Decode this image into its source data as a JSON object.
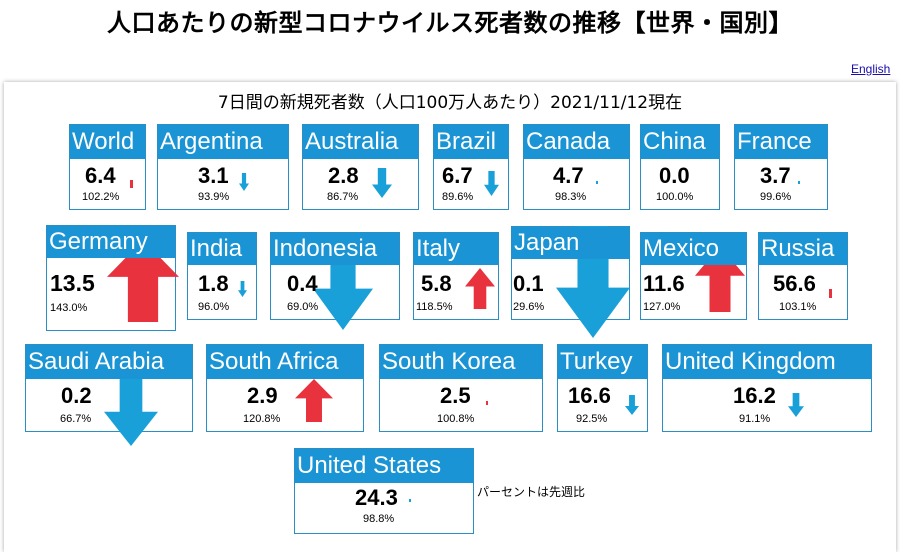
{
  "page": {
    "title": "人口あたりの新型コロナウイルス死者数の推移【世界・国別】",
    "english_link": "English",
    "footnote": "パーセントは先週比"
  },
  "colors": {
    "header": "#1a94d4",
    "up": "#e8323e",
    "down": "#1aa0d8",
    "border": "#2a8fc4"
  },
  "chart_data": {
    "type": "table",
    "title": "7日間の新規死者数（人口100万人あたり）2021/11/12現在",
    "columns": [
      "country",
      "deaths_per_million_7day",
      "week_over_week"
    ],
    "rows": [
      {
        "name": "World",
        "value": "6.4",
        "pct": "102.2%",
        "ratio": 1.022
      },
      {
        "name": "Argentina",
        "value": "3.1",
        "pct": "93.9%",
        "ratio": 0.939
      },
      {
        "name": "Australia",
        "value": "2.8",
        "pct": "86.7%",
        "ratio": 0.867
      },
      {
        "name": "Brazil",
        "value": "6.7",
        "pct": "89.6%",
        "ratio": 0.896
      },
      {
        "name": "Canada",
        "value": "4.7",
        "pct": "98.3%",
        "ratio": 0.983
      },
      {
        "name": "China",
        "value": "0.0",
        "pct": "100.0%",
        "ratio": 1.0
      },
      {
        "name": "France",
        "value": "3.7",
        "pct": "99.6%",
        "ratio": 0.996
      },
      {
        "name": "Germany",
        "value": "13.5",
        "pct": "143.0%",
        "ratio": 1.43
      },
      {
        "name": "India",
        "value": "1.8",
        "pct": "96.0%",
        "ratio": 0.96
      },
      {
        "name": "Indonesia",
        "value": "0.4",
        "pct": "69.0%",
        "ratio": 0.69
      },
      {
        "name": "Italy",
        "value": "5.8",
        "pct": "118.5%",
        "ratio": 1.185
      },
      {
        "name": "Japan",
        "value": "0.1",
        "pct": "29.6%",
        "ratio": 0.296
      },
      {
        "name": "Mexico",
        "value": "11.6",
        "pct": "127.0%",
        "ratio": 1.27
      },
      {
        "name": "Russia",
        "value": "56.6",
        "pct": "103.1%",
        "ratio": 1.031
      },
      {
        "name": "Saudi Arabia",
        "value": "0.2",
        "pct": "66.7%",
        "ratio": 0.667
      },
      {
        "name": "South Africa",
        "value": "2.9",
        "pct": "120.8%",
        "ratio": 1.208
      },
      {
        "name": "South Korea",
        "value": "2.5",
        "pct": "100.8%",
        "ratio": 1.008
      },
      {
        "name": "Turkey",
        "value": "16.6",
        "pct": "92.5%",
        "ratio": 0.925
      },
      {
        "name": "United Kingdom",
        "value": "16.2",
        "pct": "91.1%",
        "ratio": 0.911
      },
      {
        "name": "United States",
        "value": "24.3",
        "pct": "98.8%",
        "ratio": 0.988
      }
    ]
  }
}
